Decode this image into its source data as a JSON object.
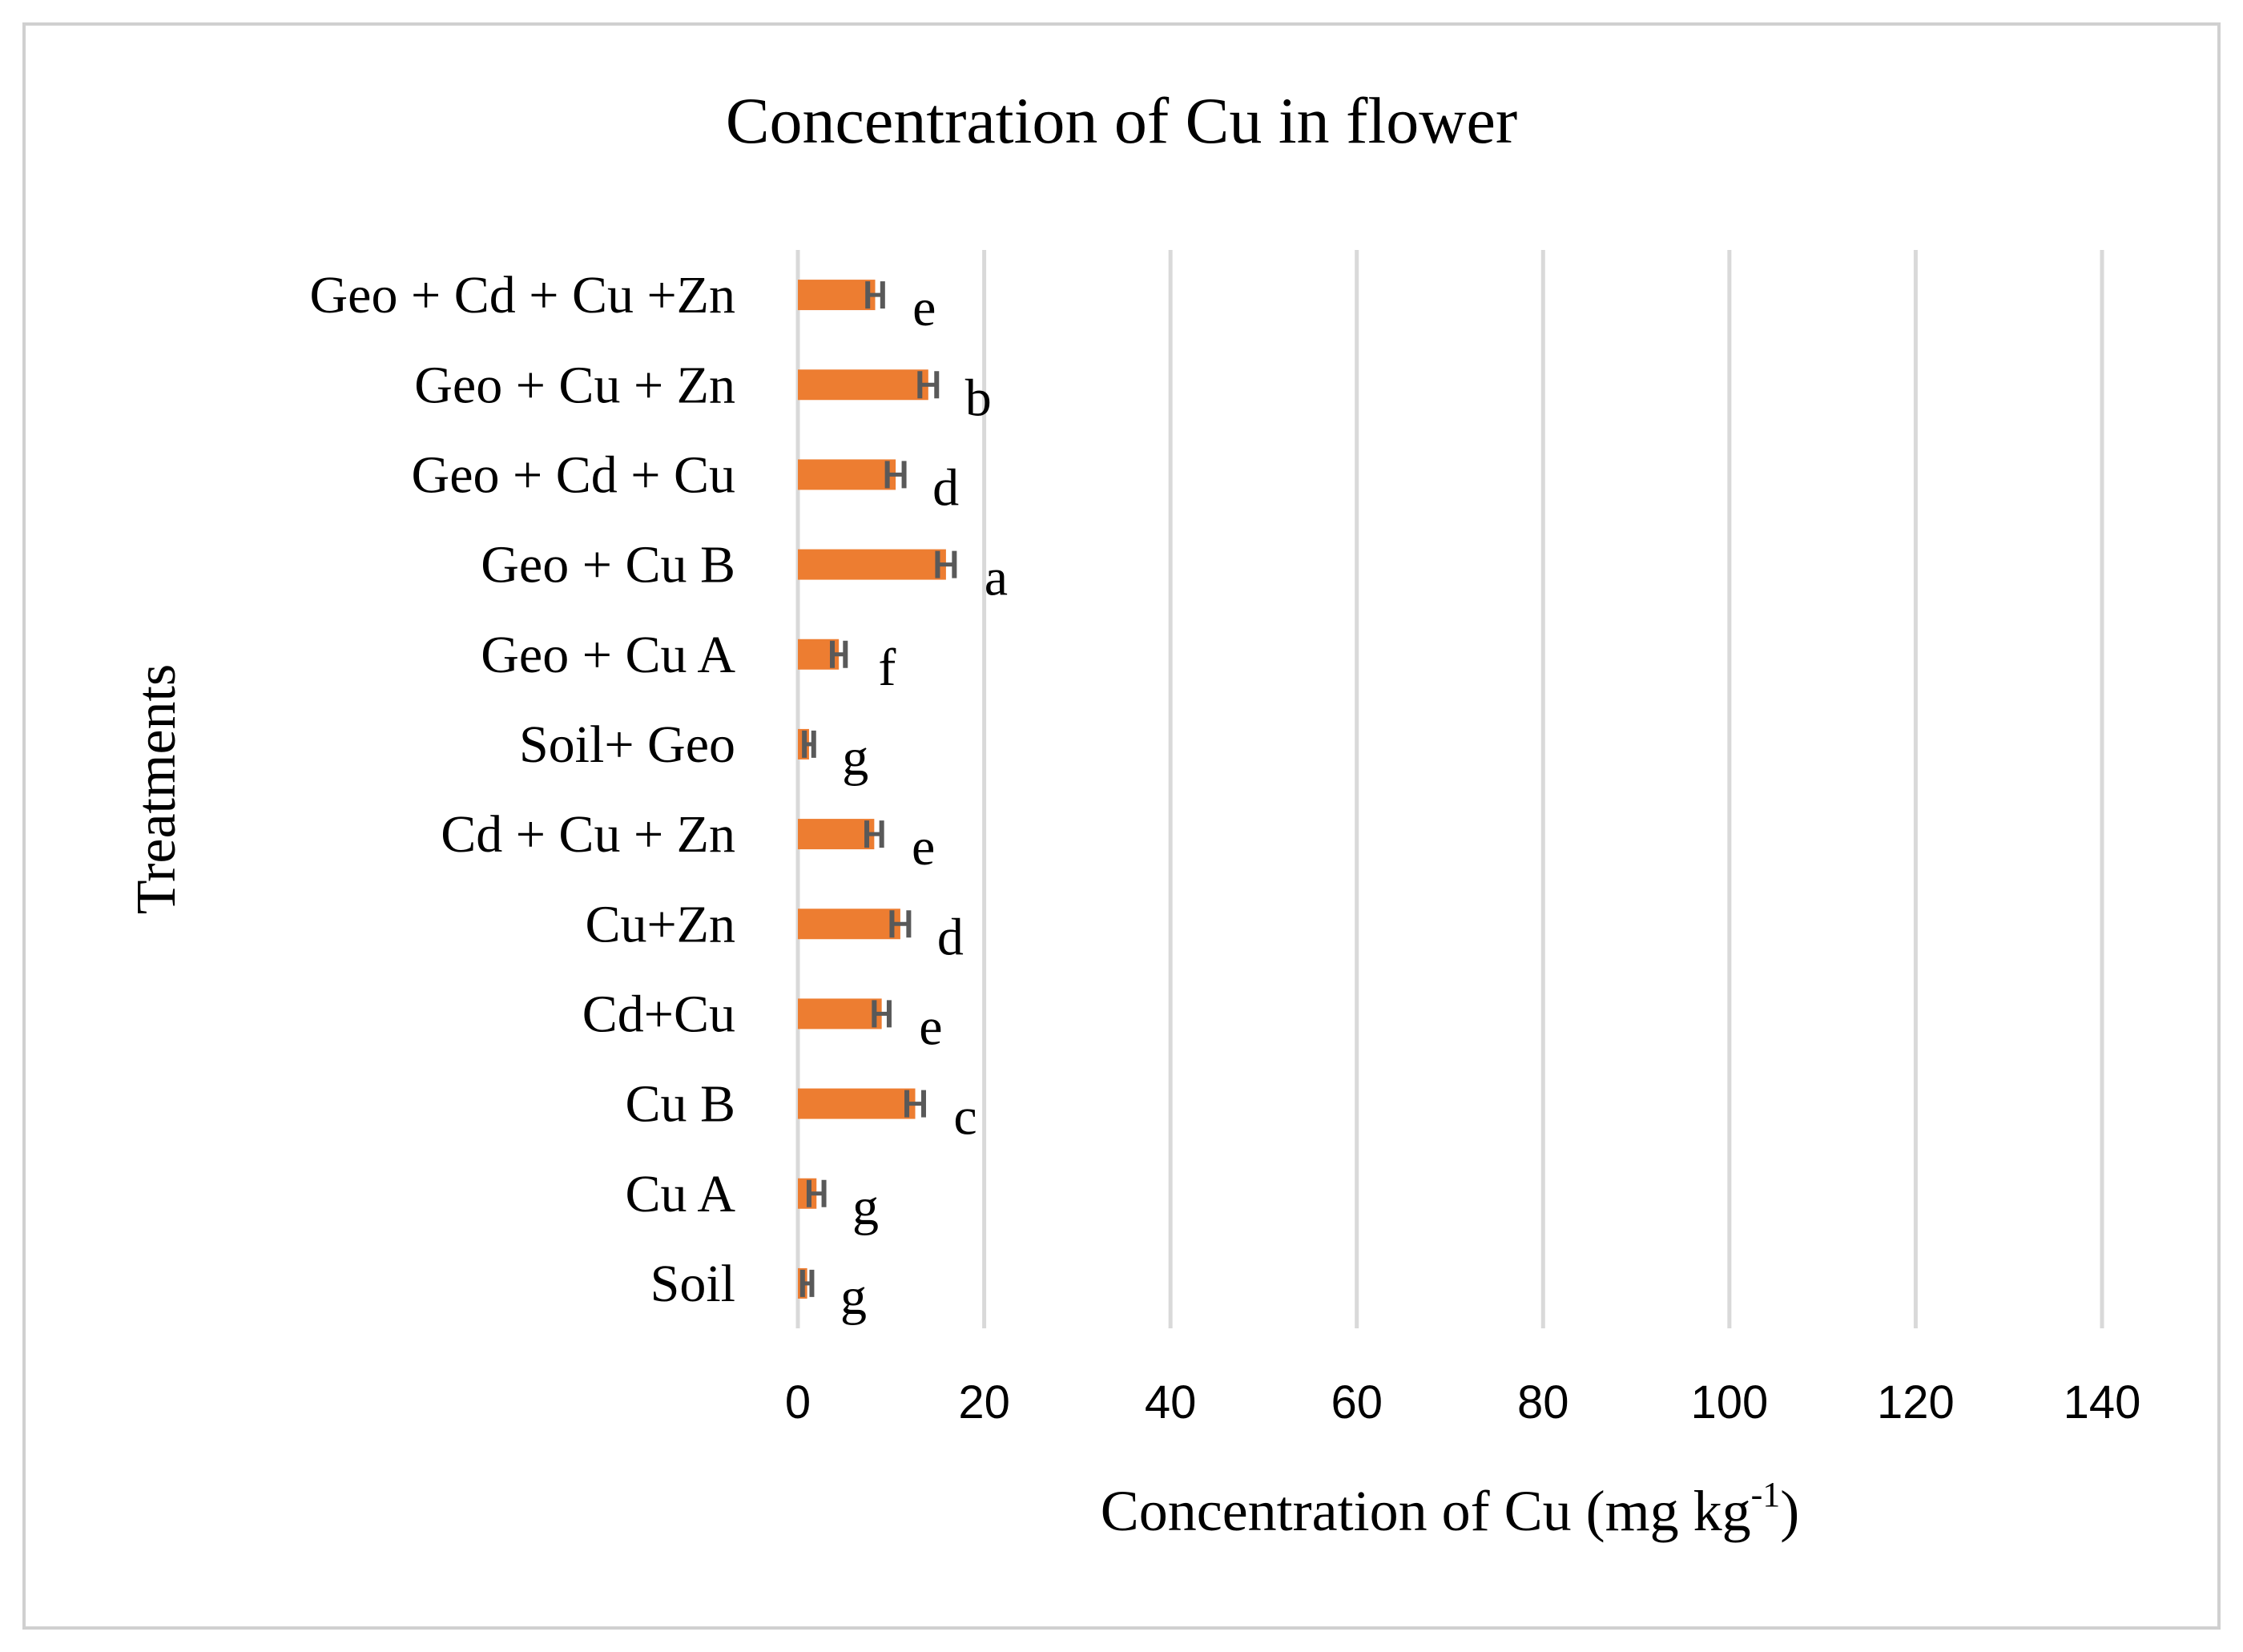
{
  "chart_data": {
    "type": "bar",
    "orientation": "horizontal",
    "title": "Concentration of Cu in flower",
    "xlabel": {
      "main": "Concentration of Cu  (mg kg",
      "superscript": "-1",
      "suffix": ")"
    },
    "ylabel": "Treatments",
    "xlim": [
      0,
      140
    ],
    "xticks": [
      "0",
      "20",
      "40",
      "60",
      "80",
      "100",
      "120",
      "140"
    ],
    "grid": "vertical",
    "categories": [
      "Soil",
      "Cu A",
      "Cu B",
      "Cd+Cu",
      "Cu+Zn",
      "Cd + Cu + Zn",
      "Soil+  Geo",
      "Geo + Cu A",
      "Geo + Cu B",
      "Geo + Cd + Cu",
      "Geo + Cu + Zn",
      "Geo +  Cd + Cu +Zn"
    ],
    "values": [
      1.0,
      2.0,
      12.6,
      9.0,
      11.0,
      8.2,
      1.2,
      4.4,
      15.9,
      10.5,
      14.0,
      8.3
    ],
    "errors": [
      0.5,
      0.8,
      0.9,
      0.8,
      0.9,
      0.8,
      0.5,
      0.7,
      0.9,
      0.9,
      0.9,
      0.8
    ],
    "significance": [
      "g",
      "g",
      "c",
      "e",
      "d",
      "e",
      "g",
      "f",
      "a",
      "d",
      "b",
      "e"
    ],
    "colors": {
      "bar": "#ED7D31",
      "error": "#595959",
      "grid": "#D9D9D9",
      "frame": "#D0D0D0",
      "text": "#000000"
    }
  }
}
